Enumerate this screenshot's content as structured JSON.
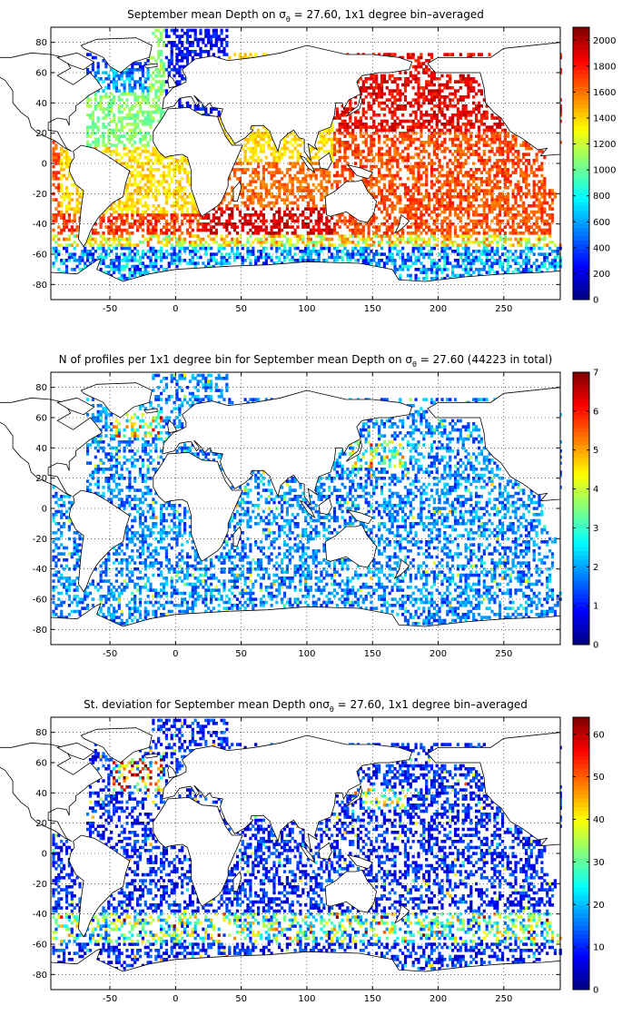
{
  "figure": {
    "background": "#ffffff",
    "colormap": "jet",
    "grid": "dotted"
  },
  "chart_data": [
    {
      "type": "heatmap",
      "title_pre": "September mean Depth on ",
      "sigma_symbol": "σ",
      "sigma_subscript": "θ",
      "title_post": " = 27.60, 1x1 degree bin–averaged",
      "xlim": [
        -95,
        293
      ],
      "ylim": [
        -90,
        90
      ],
      "xticks": [
        -50,
        0,
        50,
        100,
        150,
        200,
        250
      ],
      "yticks": [
        -80,
        -60,
        -40,
        -20,
        0,
        20,
        40,
        60,
        80
      ],
      "colorbar": {
        "min": 0,
        "max": 2100,
        "ticks": [
          0,
          200,
          400,
          600,
          800,
          1000,
          1200,
          1400,
          1600,
          1800,
          2000
        ]
      },
      "field": "mean_depth"
    },
    {
      "type": "heatmap",
      "title_pre": "N of profiles per 1x1 degree bin for September mean Depth on ",
      "sigma_symbol": "σ",
      "sigma_subscript": "θ",
      "title_post": " = 27.60 (44223 in total)",
      "xlim": [
        -95,
        293
      ],
      "ylim": [
        -90,
        90
      ],
      "xticks": [
        -50,
        0,
        50,
        100,
        150,
        200,
        250
      ],
      "yticks": [
        -80,
        -60,
        -40,
        -20,
        0,
        20,
        40,
        60,
        80
      ],
      "colorbar": {
        "min": 0,
        "max": 7,
        "ticks": [
          0,
          1,
          2,
          3,
          4,
          5,
          6,
          7
        ]
      },
      "field": "profile_count"
    },
    {
      "type": "heatmap",
      "title_pre": "St. deviation for September mean Depth on",
      "sigma_symbol": "σ",
      "sigma_subscript": "θ",
      "title_post": " = 27.60, 1x1 degree bin–averaged",
      "xlim": [
        -95,
        293
      ],
      "ylim": [
        -90,
        90
      ],
      "xticks": [
        -50,
        0,
        50,
        100,
        150,
        200,
        250
      ],
      "yticks": [
        -80,
        -60,
        -40,
        -20,
        0,
        20,
        40,
        60,
        80
      ],
      "colorbar": {
        "min": 0,
        "max": 64,
        "ticks": [
          0,
          10,
          20,
          30,
          40,
          50,
          60
        ]
      },
      "field": "std_dev"
    }
  ]
}
